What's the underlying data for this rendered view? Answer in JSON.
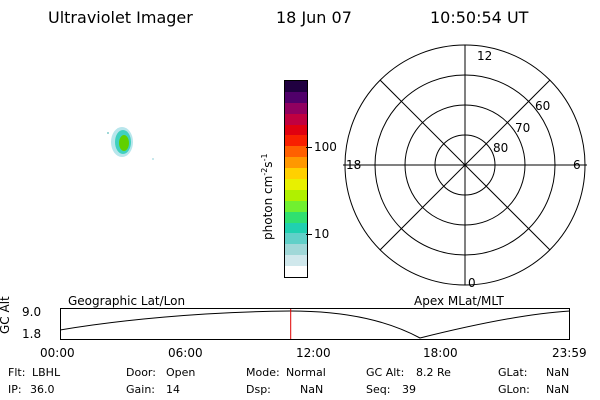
{
  "header": {
    "instrument": "Ultraviolet Imager",
    "date": "18 Jun 07",
    "time": "10:50:54 UT"
  },
  "colorbar": {
    "label": "photon cm^-2 s^-1",
    "ticks": [
      "100",
      "10"
    ],
    "colors": [
      "#ffffff",
      "#d0e8ec",
      "#a0d8d8",
      "#60d0c8",
      "#20d0b0",
      "#30e070",
      "#70f030",
      "#b0f000",
      "#e8f000",
      "#ffd000",
      "#ff9800",
      "#ff6000",
      "#f82000",
      "#e00010",
      "#c00040",
      "#900060",
      "#50006a",
      "#200040"
    ]
  },
  "polar_plot": {
    "mlt_labels": {
      "top": "12",
      "bottom": "0",
      "left": "18",
      "right": "6"
    },
    "lat_labels": [
      "60",
      "70",
      "80"
    ]
  },
  "timeline": {
    "left_title": "Geographic Lat/Lon",
    "right_title": "Apex MLat/MLT",
    "y_axis_label": "GC Alt",
    "y_ticks": [
      "9.0",
      "1.8"
    ],
    "x_ticks": [
      "00:00",
      "06:00",
      "12:00",
      "18:00",
      "23:59"
    ],
    "current_time": "10:50:54",
    "marker_color": "#e00000"
  },
  "info": {
    "row1": {
      "flt_label": "Flt:",
      "flt_value": "LBHL",
      "door_label": "Door:",
      "door_value": "Open",
      "mode_label": "Mode:",
      "mode_value": "Normal",
      "gcalt_label": "GC Alt:",
      "gcalt_value": "8.2 Re",
      "glat_label": "GLat:",
      "glat_value": "NaN"
    },
    "row2": {
      "ip_label": "IP:",
      "ip_value": "36.0",
      "gain_label": "Gain:",
      "gain_value": "14",
      "dsp_label": "Dsp:",
      "dsp_value": "NaN",
      "seq_label": "Seq:",
      "seq_value": "39",
      "glon_label": "GLon:",
      "glon_value": "NaN"
    }
  }
}
